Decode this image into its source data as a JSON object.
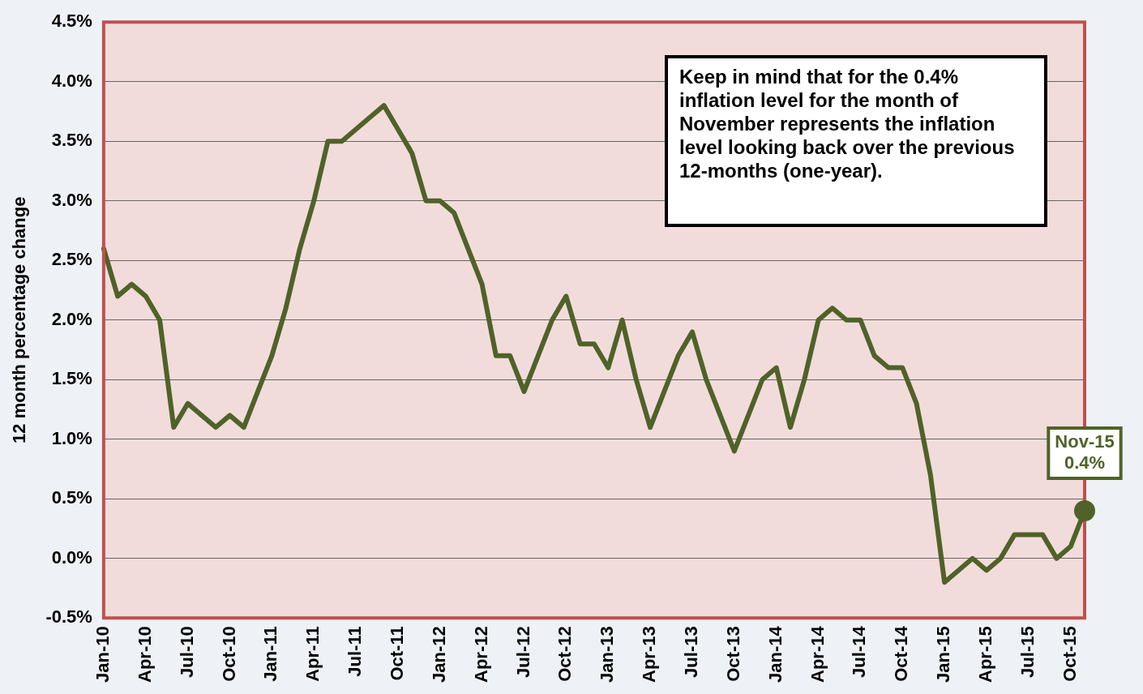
{
  "chart_data": {
    "type": "line",
    "ylabel": "12 month percentage change",
    "categories": [
      "Jan-10",
      null,
      null,
      "Apr-10",
      null,
      null,
      "Jul-10",
      null,
      null,
      "Oct-10",
      null,
      null,
      "Jan-11",
      null,
      null,
      "Apr-11",
      null,
      null,
      "Jul-11",
      null,
      null,
      "Oct-11",
      null,
      null,
      "Jan-12",
      null,
      null,
      "Apr-12",
      null,
      null,
      "Jul-12",
      null,
      null,
      "Oct-12",
      null,
      null,
      "Jan-13",
      null,
      null,
      "Apr-13",
      null,
      null,
      "Jul-13",
      null,
      null,
      "Oct-13",
      null,
      null,
      "Jan-14",
      null,
      null,
      "Apr-14",
      null,
      null,
      "Jul-14",
      null,
      null,
      "Oct-14",
      null,
      null,
      "Jan-15",
      null,
      null,
      "Apr-15",
      null,
      null,
      "Jul-15",
      null,
      null,
      "Oct-15",
      null
    ],
    "series": [
      {
        "color": "#4f6228",
        "values": [
          2.6,
          2.2,
          2.3,
          2.2,
          2.0,
          1.1,
          1.3,
          1.2,
          1.1,
          1.2,
          1.1,
          1.4,
          1.7,
          2.1,
          2.6,
          3.0,
          3.5,
          3.5,
          3.6,
          3.7,
          3.8,
          3.6,
          3.4,
          3.0,
          3.0,
          2.9,
          2.6,
          2.3,
          1.7,
          1.7,
          1.4,
          1.7,
          2.0,
          2.2,
          1.8,
          1.8,
          1.6,
          2.0,
          1.5,
          1.1,
          1.4,
          1.7,
          1.9,
          1.5,
          1.2,
          0.9,
          1.2,
          1.5,
          1.6,
          1.1,
          1.5,
          2.0,
          2.1,
          2.0,
          2.0,
          1.7,
          1.6,
          1.6,
          1.3,
          0.7,
          -0.2,
          -0.1,
          0.0,
          -0.1,
          0.0,
          0.2,
          0.2,
          0.2,
          0.0,
          0.1,
          0.4
        ]
      }
    ],
    "ylim": [
      -0.5,
      4.5
    ],
    "yticks": [
      {
        "value": -0.5,
        "label": "-0.5%"
      },
      {
        "value": 0,
        "label": "0.0%"
      },
      {
        "value": 0.5,
        "label": "0.5%"
      },
      {
        "value": 1,
        "label": "1.0%"
      },
      {
        "value": 1.5,
        "label": "1.5%"
      },
      {
        "value": 2,
        "label": "2.0%"
      },
      {
        "value": 2.5,
        "label": "2.5%"
      },
      {
        "value": 3,
        "label": "3.0%"
      },
      {
        "value": 3.5,
        "label": "3.5%"
      },
      {
        "value": 4,
        "label": "4.0%"
      },
      {
        "value": 4.5,
        "label": "4.5%"
      }
    ],
    "grid": "y",
    "legend": false,
    "marker": "none",
    "line_style": "solid",
    "annotations": [
      "Keep in mind that for the 0.4% inflation level for the month of November represents the inflation level looking back over the previous 12-months (one-year).",
      {
        "text": "Nov-15\n0.4%",
        "y": 0.4
      }
    ]
  }
}
